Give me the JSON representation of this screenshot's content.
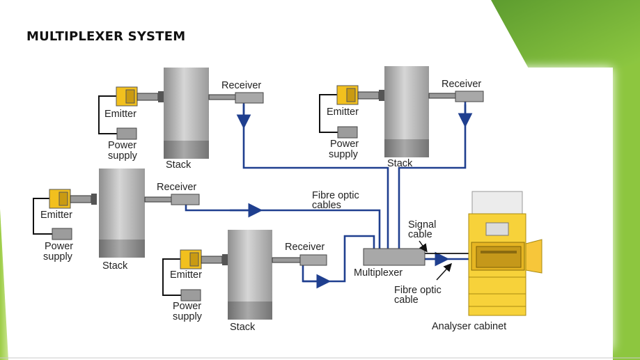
{
  "slide": {
    "title": "MULTIPLEXER SYSTEM"
  },
  "colors": {
    "accent_green": "#8dc63f",
    "dark_green": "#5a9a2e",
    "cable_blue": "#1f3f8f",
    "emitter_yellow": "#f2c01e",
    "cabinet_yellow": "#f7d23a",
    "stack_gray": "#b9b9b9"
  },
  "diagram": {
    "units": [
      {
        "emitter": "Emitter",
        "power": [
          "Power",
          "supply"
        ],
        "stack": "Stack",
        "receiver": "Receiver"
      },
      {
        "emitter": "Emitter",
        "power": [
          "Power",
          "supply"
        ],
        "stack": "Stack",
        "receiver": "Receiver"
      },
      {
        "emitter": "Emitter",
        "power": [
          "Power",
          "supply"
        ],
        "stack": "Stack",
        "receiver": "Receiver"
      },
      {
        "emitter": "Emitter",
        "power": [
          "Power",
          "supply"
        ],
        "stack": "Stack",
        "receiver": "Receiver"
      }
    ],
    "fibre_optic_cables": [
      "Fibre optic",
      "cables"
    ],
    "multiplexer": "Multiplexer",
    "signal_cable": [
      "Signal",
      "cable"
    ],
    "fibre_optic_cable": [
      "Fibre optic",
      "cable"
    ],
    "analyser_cabinet": "Analyser cabinet"
  }
}
